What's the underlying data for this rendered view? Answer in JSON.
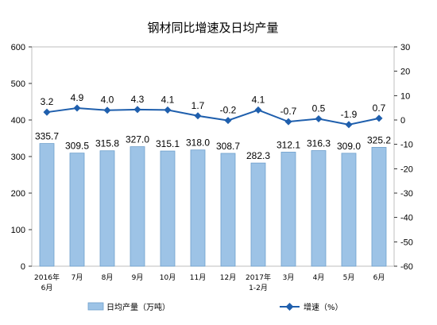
{
  "chart_data": {
    "type": "bar",
    "title": "钢材同比增速及日均产量",
    "categories": [
      [
        "2016年",
        "6月"
      ],
      [
        "7月"
      ],
      [
        "8月"
      ],
      [
        "9月"
      ],
      [
        "10月"
      ],
      [
        "11月"
      ],
      [
        "12月"
      ],
      [
        "2017年",
        "1-2月"
      ],
      [
        "3月"
      ],
      [
        "4月"
      ],
      [
        "5月"
      ],
      [
        "6月"
      ]
    ],
    "series": [
      {
        "name": "日均产量（万吨）",
        "type": "bar",
        "axis": "left",
        "color": "#9DC3E6",
        "values": [
          335.7,
          309.5,
          315.8,
          327.0,
          315.1,
          318.0,
          308.7,
          282.3,
          312.1,
          316.3,
          309.0,
          325.2
        ],
        "labels": [
          "335.7",
          "309.5",
          "315.8",
          "327.0",
          "315.1",
          "318.0",
          "308.7",
          "282.3",
          "312.1",
          "316.3",
          "309.0",
          "325.2"
        ]
      },
      {
        "name": "增速（%）",
        "type": "line",
        "axis": "right",
        "color": "#1F5FAD",
        "values": [
          3.2,
          4.9,
          4.0,
          4.3,
          4.1,
          1.7,
          -0.2,
          4.1,
          -0.7,
          0.5,
          -1.9,
          0.7
        ],
        "labels": [
          "3.2",
          "4.9",
          "4.0",
          "4.3",
          "4.1",
          "1.7",
          "-0.2",
          "4.1",
          "-0.7",
          "0.5",
          "-1.9",
          "0.7"
        ]
      }
    ],
    "y_left": {
      "min": 0,
      "max": 600,
      "ticks": [
        0,
        100,
        200,
        300,
        400,
        500,
        600
      ]
    },
    "y_right": {
      "min": -60,
      "max": 30,
      "ticks": [
        30,
        20,
        10,
        0,
        -10,
        -20,
        -30,
        -40,
        -50,
        -60
      ]
    },
    "grid": false,
    "legend_position": "bottom"
  }
}
